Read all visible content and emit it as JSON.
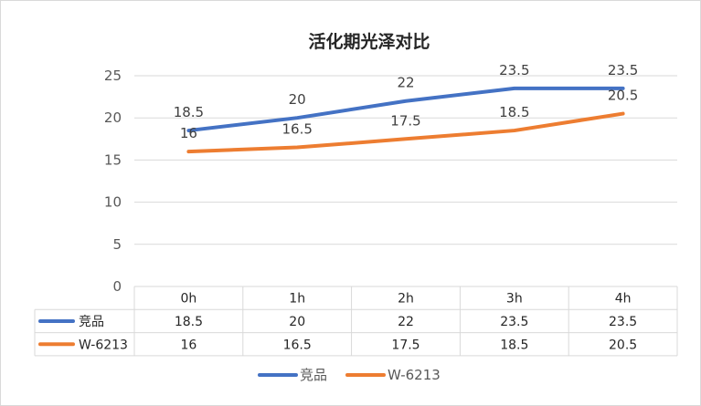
{
  "chart_data": {
    "type": "line",
    "title": "活化期光泽对比",
    "categories": [
      "0h",
      "1h",
      "2h",
      "3h",
      "4h"
    ],
    "ylim": [
      0,
      25
    ],
    "yticks": [
      0,
      5,
      10,
      15,
      20,
      25
    ],
    "grid": true,
    "legend": "bottom",
    "data_table": true,
    "series": [
      {
        "name": "竞品",
        "values": [
          18.5,
          20,
          22,
          23.5,
          23.5
        ],
        "color": "#4472c4"
      },
      {
        "name": "W-6213",
        "values": [
          16,
          16.5,
          17.5,
          18.5,
          20.5
        ],
        "color": "#ed7d31"
      }
    ]
  }
}
